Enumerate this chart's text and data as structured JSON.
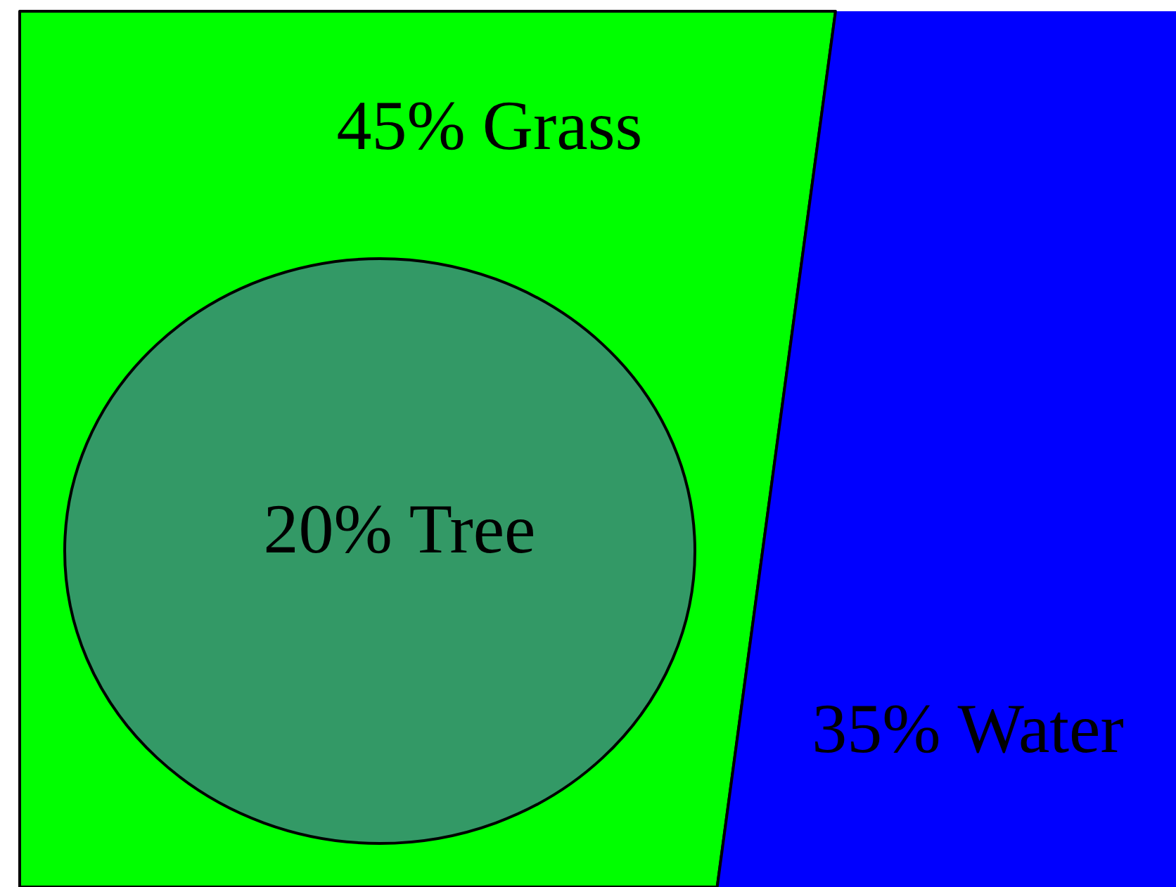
{
  "chart_data": {
    "type": "other",
    "categories": [
      "Grass",
      "Tree",
      "Water"
    ],
    "values": [
      45,
      20,
      35
    ],
    "value_labels": [
      "45%",
      "20%",
      "35%"
    ],
    "colors": [
      "#00ff00",
      "#339966",
      "#0000ff"
    ]
  }
}
